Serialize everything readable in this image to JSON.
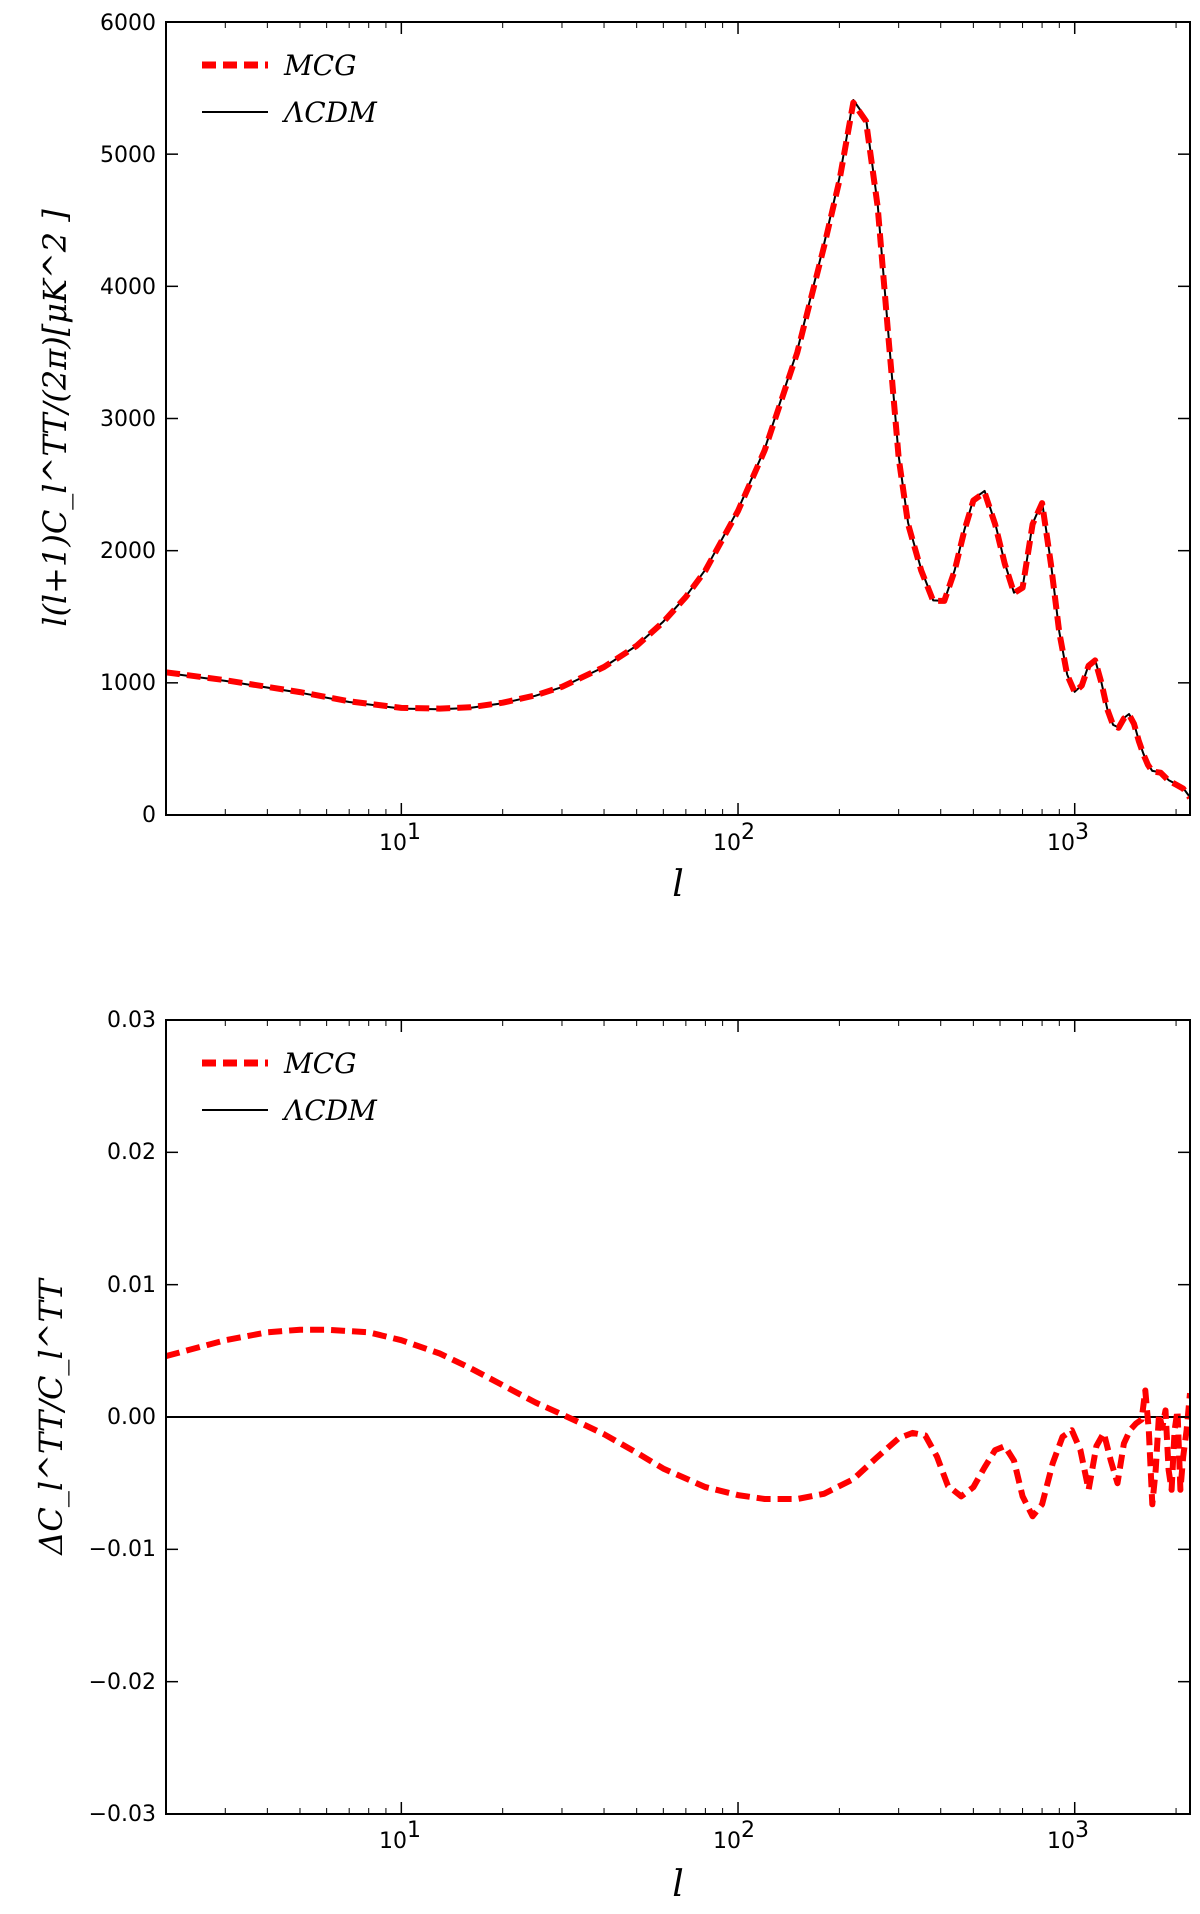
{
  "colors": {
    "mcg": "#ff0000",
    "lcdm": "#000000",
    "axes": "#000000",
    "background": "#ffffff"
  },
  "chart_data": [
    {
      "type": "line",
      "xscale": "log",
      "xlim": [
        2,
        2200
      ],
      "ylim": [
        0,
        6000
      ],
      "xlabel": "l",
      "ylabel": "l(l+1)C_l^TT/(2π)[μK^2 ]",
      "grid": false,
      "legend_position": "top-left",
      "xticks": [
        {
          "value": 10,
          "label": "10",
          "exp": "1"
        },
        {
          "value": 100,
          "label": "10",
          "exp": "2"
        },
        {
          "value": 1000,
          "label": "10",
          "exp": "3"
        }
      ],
      "yticks": [
        {
          "value": 0,
          "label": "0"
        },
        {
          "value": 1000,
          "label": "1000"
        },
        {
          "value": 2000,
          "label": "2000"
        },
        {
          "value": 3000,
          "label": "3000"
        },
        {
          "value": 4000,
          "label": "4000"
        },
        {
          "value": 5000,
          "label": "5000"
        },
        {
          "value": 6000,
          "label": "6000"
        }
      ],
      "series": [
        {
          "name": "MCG",
          "style": "dashed",
          "x": [
            2,
            3,
            5,
            7,
            10,
            13,
            16,
            20,
            25,
            30,
            40,
            50,
            60,
            70,
            80,
            100,
            120,
            150,
            180,
            200,
            220,
            240,
            260,
            280,
            300,
            320,
            350,
            380,
            410,
            440,
            470,
            500,
            540,
            580,
            620,
            660,
            700,
            750,
            800,
            850,
            900,
            950,
            1000,
            1050,
            1100,
            1150,
            1200,
            1250,
            1300,
            1350,
            1400,
            1450,
            1500,
            1550,
            1600,
            1650,
            1700,
            1800,
            1900,
            2000,
            2100,
            2200
          ],
          "y": [
            1080,
            1020,
            930,
            860,
            810,
            805,
            815,
            850,
            905,
            970,
            1120,
            1280,
            1460,
            1650,
            1850,
            2300,
            2760,
            3500,
            4300,
            4800,
            5390,
            5250,
            4600,
            3600,
            2700,
            2200,
            1850,
            1620,
            1620,
            1850,
            2150,
            2380,
            2440,
            2200,
            1900,
            1680,
            1720,
            2200,
            2360,
            1900,
            1380,
            1060,
            930,
            980,
            1130,
            1170,
            1000,
            800,
            680,
            660,
            730,
            760,
            690,
            560,
            460,
            380,
            330,
            320,
            260,
            230,
            200,
            130
          ]
        },
        {
          "name": "ΛCDM",
          "style": "solid",
          "x": [
            2,
            3,
            5,
            7,
            10,
            13,
            16,
            20,
            25,
            30,
            40,
            50,
            60,
            70,
            80,
            100,
            120,
            150,
            180,
            200,
            220,
            240,
            260,
            280,
            300,
            320,
            350,
            380,
            410,
            440,
            470,
            500,
            540,
            580,
            620,
            660,
            700,
            750,
            800,
            850,
            900,
            950,
            1000,
            1050,
            1100,
            1150,
            1200,
            1250,
            1300,
            1350,
            1400,
            1450,
            1500,
            1550,
            1600,
            1650,
            1700,
            1800,
            1900,
            2000,
            2100,
            2200
          ],
          "y": [
            1075,
            1015,
            925,
            855,
            805,
            800,
            810,
            846,
            902,
            968,
            1120,
            1282,
            1463,
            1655,
            1856,
            2310,
            2770,
            3515,
            4318,
            4820,
            5410,
            5272,
            4620,
            3620,
            2715,
            2210,
            1858,
            1624,
            1620,
            1852,
            2155,
            2390,
            2452,
            2210,
            1905,
            1682,
            1722,
            2205,
            2370,
            1908,
            1385,
            1062,
            932,
            982,
            1134,
            1175,
            1004,
            802,
            682,
            662,
            734,
            764,
            694,
            564,
            464,
            384,
            334,
            324,
            264,
            234,
            204,
            134
          ]
        }
      ]
    },
    {
      "type": "line",
      "xscale": "log",
      "xlim": [
        2,
        2200
      ],
      "ylim": [
        -0.03,
        0.03
      ],
      "xlabel": "l",
      "ylabel": "ΔC_l^TT/C_l^TT",
      "grid": false,
      "legend_position": "top-left",
      "xticks": [
        {
          "value": 10,
          "label": "10",
          "exp": "1"
        },
        {
          "value": 100,
          "label": "10",
          "exp": "2"
        },
        {
          "value": 1000,
          "label": "10",
          "exp": "3"
        }
      ],
      "yticks": [
        {
          "value": -0.03,
          "label": "−0.03"
        },
        {
          "value": -0.02,
          "label": "−0.02"
        },
        {
          "value": -0.01,
          "label": "−0.01"
        },
        {
          "value": 0.0,
          "label": "0.00"
        },
        {
          "value": 0.01,
          "label": "0.01"
        },
        {
          "value": 0.02,
          "label": "0.02"
        },
        {
          "value": 0.03,
          "label": "0.03"
        }
      ],
      "series": [
        {
          "name": "MCG",
          "style": "dashed",
          "x": [
            2,
            3,
            4,
            5,
            6,
            8,
            10,
            13,
            16,
            20,
            25,
            30,
            35,
            40,
            50,
            60,
            80,
            100,
            120,
            150,
            180,
            220,
            260,
            300,
            330,
            360,
            390,
            420,
            460,
            500,
            540,
            580,
            620,
            660,
            700,
            750,
            800,
            860,
            920,
            980,
            1040,
            1100,
            1160,
            1220,
            1280,
            1340,
            1400,
            1460,
            1520,
            1580,
            1620,
            1660,
            1700,
            1740,
            1780,
            1820,
            1860,
            1900,
            1940,
            1980,
            2020,
            2060,
            2100,
            2150,
            2200
          ],
          "y": [
            0.0046,
            0.0058,
            0.0064,
            0.0066,
            0.0066,
            0.0064,
            0.0058,
            0.0048,
            0.0037,
            0.0024,
            0.0011,
            0.0002,
            -0.0006,
            -0.0013,
            -0.0027,
            -0.0039,
            -0.0053,
            -0.0059,
            -0.0062,
            -0.0062,
            -0.0058,
            -0.0047,
            -0.003,
            -0.0016,
            -0.0012,
            -0.0014,
            -0.003,
            -0.0052,
            -0.006,
            -0.0053,
            -0.0038,
            -0.0025,
            -0.0022,
            -0.0033,
            -0.006,
            -0.0075,
            -0.0066,
            -0.0035,
            -0.0015,
            -0.001,
            -0.0025,
            -0.0055,
            -0.0022,
            -0.0012,
            -0.0033,
            -0.005,
            -0.002,
            -0.001,
            -0.0005,
            -0.0002,
            0.002,
            -0.001,
            -0.0066,
            -0.004,
            0.0002,
            -0.0008,
            0.0005,
            -0.004,
            -0.0055,
            -0.001,
            0.0005,
            -0.0055,
            -0.003,
            -0.001,
            0.0018
          ]
        },
        {
          "name": "ΛCDM",
          "style": "solid",
          "x": [
            2,
            2200
          ],
          "y": [
            0.0,
            0.0
          ]
        }
      ]
    }
  ]
}
